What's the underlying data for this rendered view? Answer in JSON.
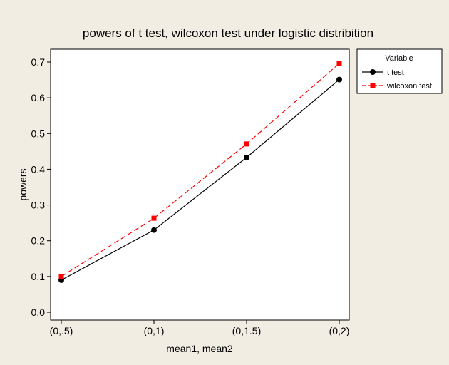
{
  "chart_data": {
    "type": "line",
    "title": "powers of t test, wilcoxon test under logistic distribition",
    "xlabel": "mean1, mean2",
    "ylabel": "powers",
    "categories": [
      "(0,.5)",
      "(0,1)",
      "(0,1.5)",
      "(0,2)"
    ],
    "ylim": [
      -0.01,
      0.72
    ],
    "yticks": [
      0.0,
      0.1,
      0.2,
      0.3,
      0.4,
      0.5,
      0.6,
      0.7
    ],
    "ytick_labels": [
      "0.0",
      "0.1",
      "0.2",
      "0.3",
      "0.4",
      "0.5",
      "0.6",
      "0.7"
    ],
    "grid": false,
    "legend": {
      "title": "Variable",
      "placement": "right"
    },
    "series": [
      {
        "name": "t test",
        "values": [
          0.09,
          0.23,
          0.433,
          0.651
        ],
        "color": "#000000",
        "marker": "circle",
        "line_style": "solid"
      },
      {
        "name": "wilcoxon test",
        "values": [
          0.1,
          0.263,
          0.471,
          0.696
        ],
        "color": "#ff0000",
        "marker": "square",
        "line_style": "dashed"
      }
    ],
    "colors": {
      "background": "#f1ede2",
      "plot_background": "#ffffff"
    }
  }
}
